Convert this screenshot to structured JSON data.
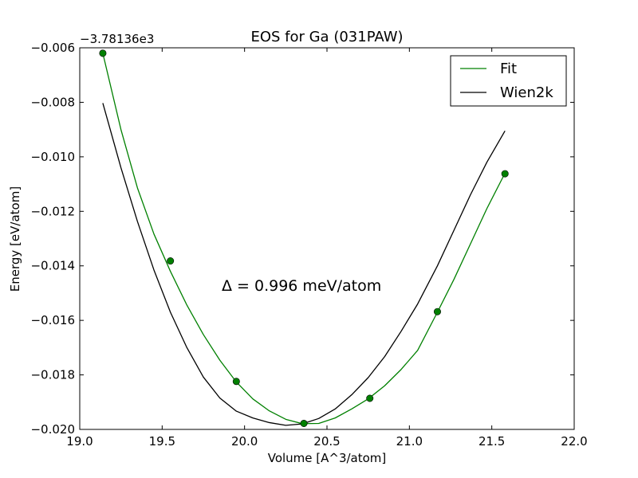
{
  "chart_data": {
    "type": "line",
    "title": "EOS for Ga (031PAW)",
    "xlabel": "Volume [A^3/atom]",
    "ylabel": "Energy [eV/atom]",
    "offset_label": "−3.78136e3",
    "annotation": "Δ = 0.996 meV/atom",
    "xlim": [
      19.0,
      22.0
    ],
    "ylim": [
      -0.02,
      -0.006
    ],
    "x_ticks": [
      19.0,
      19.5,
      20.0,
      20.5,
      21.0,
      21.5,
      22.0
    ],
    "x_tick_labels": [
      "19.0",
      "19.5",
      "20.0",
      "20.5",
      "21.0",
      "21.5",
      "22.0"
    ],
    "y_ticks": [
      -0.02,
      -0.018,
      -0.016,
      -0.014,
      -0.012,
      -0.01,
      -0.008,
      -0.006
    ],
    "y_tick_labels": [
      "−0.020",
      "−0.018",
      "−0.016",
      "−0.014",
      "−0.012",
      "−0.010",
      "−0.008",
      "−0.006"
    ],
    "grid": false,
    "legend_position": "top-right",
    "series": [
      {
        "name": "Fit",
        "color": "#008000",
        "kind": "line",
        "x": [
          19.14,
          19.25,
          19.35,
          19.45,
          19.55,
          19.65,
          19.75,
          19.85,
          19.95,
          20.05,
          20.15,
          20.25,
          20.35,
          20.45,
          20.55,
          20.65,
          20.75,
          20.85,
          20.95,
          21.05,
          21.17,
          21.27,
          21.37,
          21.47,
          21.58
        ],
        "y": [
          -0.0062,
          -0.009,
          -0.01114,
          -0.01283,
          -0.0142,
          -0.01544,
          -0.01652,
          -0.01746,
          -0.01826,
          -0.01888,
          -0.01932,
          -0.01963,
          -0.01979,
          -0.01978,
          -0.01958,
          -0.01925,
          -0.01888,
          -0.0184,
          -0.0178,
          -0.0171,
          -0.0157,
          -0.0145,
          -0.0132,
          -0.0119,
          -0.0106
        ]
      },
      {
        "name": "Wien2k",
        "color": "#000000",
        "kind": "line",
        "x": [
          19.14,
          19.25,
          19.35,
          19.45,
          19.55,
          19.65,
          19.75,
          19.85,
          19.95,
          20.05,
          20.15,
          20.25,
          20.35,
          20.45,
          20.55,
          20.65,
          20.75,
          20.85,
          20.95,
          21.05,
          21.17,
          21.27,
          21.37,
          21.47,
          21.58
        ],
        "y": [
          -0.00803,
          -0.0104,
          -0.01237,
          -0.01415,
          -0.0157,
          -0.017,
          -0.01808,
          -0.01885,
          -0.01933,
          -0.01958,
          -0.01975,
          -0.01985,
          -0.0198,
          -0.0196,
          -0.01925,
          -0.01873,
          -0.0181,
          -0.01733,
          -0.0164,
          -0.0154,
          -0.014,
          -0.0127,
          -0.0114,
          -0.0102,
          -0.00905
        ]
      },
      {
        "name": "",
        "color": "#008000",
        "kind": "points",
        "x": [
          19.14,
          19.55,
          19.95,
          20.36,
          20.76,
          21.17,
          21.58
        ],
        "y": [
          -0.0062,
          -0.01382,
          -0.01824,
          -0.01978,
          -0.01886,
          -0.01568,
          -0.01062
        ]
      }
    ]
  }
}
